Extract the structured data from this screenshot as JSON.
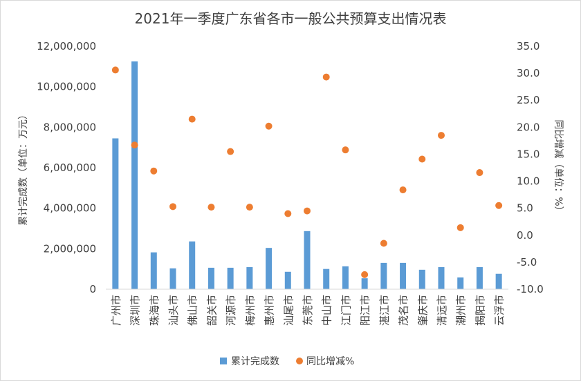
{
  "chart_data": {
    "type": "bar",
    "title": "2021年一季度广东省各市一般公共预算支出情况表",
    "categories": [
      "广州市",
      "深圳市",
      "珠海市",
      "汕头市",
      "佛山市",
      "韶关市",
      "河源市",
      "梅州市",
      "惠州市",
      "汕尾市",
      "东莞市",
      "中山市",
      "江门市",
      "阳江市",
      "湛江市",
      "茂名市",
      "肇庆市",
      "清远市",
      "潮州市",
      "揭阳市",
      "云浮市"
    ],
    "series": [
      {
        "name": "累计完成数",
        "type": "bar",
        "axis": "left",
        "color": "#5B9BD5",
        "values": [
          7450000,
          11250000,
          1820000,
          1030000,
          2360000,
          1060000,
          1060000,
          1090000,
          2040000,
          860000,
          2870000,
          1000000,
          1130000,
          540000,
          1300000,
          1300000,
          960000,
          1090000,
          580000,
          1090000,
          760000
        ]
      },
      {
        "name": "同比增减%",
        "type": "scatter",
        "axis": "right",
        "color": "#ED7D31",
        "values": [
          30.6,
          16.7,
          11.9,
          5.3,
          21.5,
          5.2,
          15.5,
          5.2,
          20.2,
          4.0,
          4.5,
          29.3,
          15.8,
          -7.3,
          -1.5,
          8.4,
          14.1,
          18.5,
          1.4,
          11.6,
          5.5
        ]
      }
    ],
    "y_left": {
      "label": "累计完成数（单位：万元）",
      "ylim": [
        0,
        12000000
      ],
      "ticks": [
        0,
        2000000,
        4000000,
        6000000,
        8000000,
        10000000,
        12000000
      ],
      "tick_labels": [
        "0",
        "2,000,000",
        "4,000,000",
        "6,000,000",
        "8,000,000",
        "10,000,000",
        "12,000,000"
      ]
    },
    "y_right": {
      "label": "同比增减（单位：%）",
      "ylim": [
        -10,
        35
      ],
      "ticks": [
        -10,
        -5,
        0,
        5,
        10,
        15,
        20,
        25,
        30,
        35
      ],
      "tick_labels": [
        "-10.0",
        "-5.0",
        "0.0",
        "5.0",
        "10.0",
        "15.0",
        "20.0",
        "25.0",
        "30.0",
        "35.0"
      ]
    },
    "grid": false,
    "legend": "bottom",
    "legend_entries": [
      "累计完成数",
      "同比增减%"
    ]
  }
}
